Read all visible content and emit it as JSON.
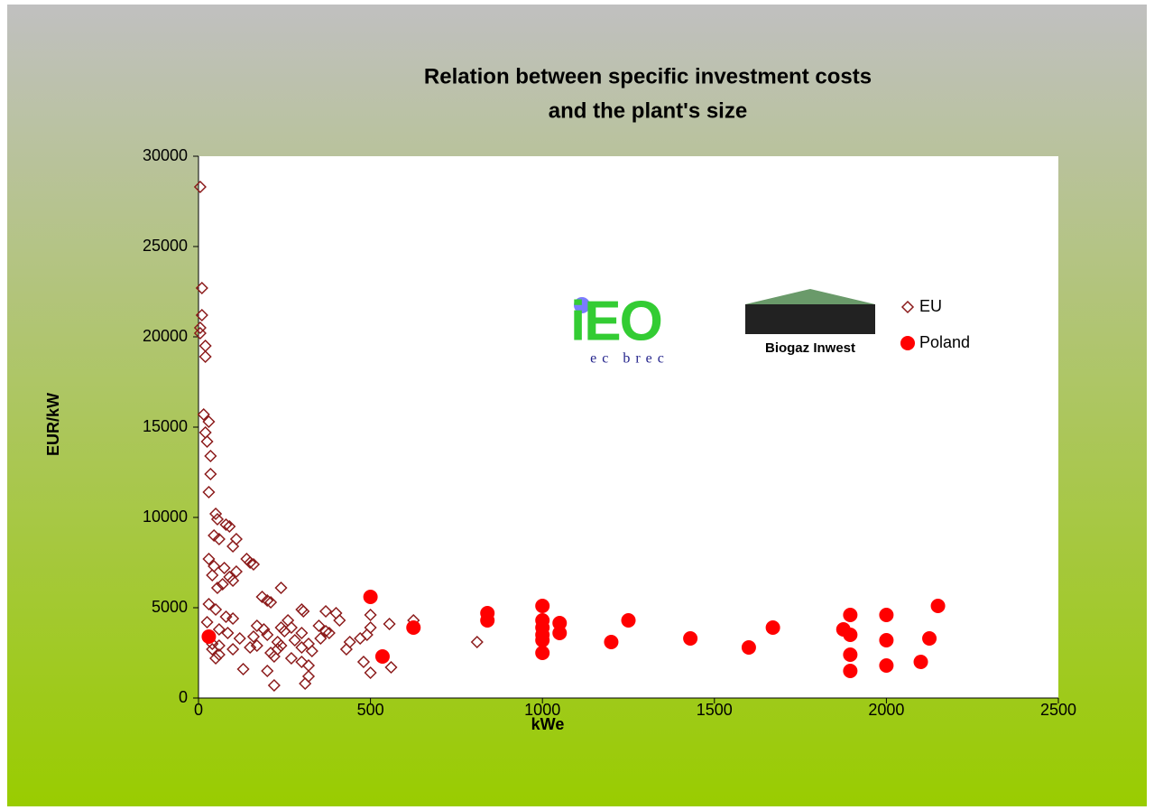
{
  "chart_data": {
    "type": "scatter",
    "title": [
      "Relation between  specific investment costs",
      "and the plant's size"
    ],
    "x_label": "kWe",
    "y_label": "EUR/kW",
    "xlim": [
      0,
      2500
    ],
    "xticks": [
      0,
      500,
      1000,
      1500,
      2000,
      2500
    ],
    "ylim": [
      0,
      30000
    ],
    "yticks": [
      0,
      5000,
      10000,
      15000,
      20000,
      25000,
      30000
    ],
    "grid": false,
    "legend": "right",
    "logos": [
      {
        "text": "iEO",
        "caption": "ec brec"
      },
      {
        "text": "Biogaz Inwest"
      }
    ],
    "series": [
      {
        "name": "EU",
        "color": "#8b1a1a",
        "marker": "diamond-open",
        "x": [
          5,
          10,
          10,
          5,
          5,
          20,
          20,
          15,
          30,
          20,
          25,
          35,
          35,
          30,
          50,
          55,
          80,
          90,
          45,
          60,
          110,
          100,
          30,
          45,
          75,
          140,
          150,
          160,
          110,
          40,
          90,
          100,
          70,
          55,
          240,
          185,
          200,
          210,
          30,
          50,
          300,
          305,
          370,
          400,
          500,
          80,
          100,
          260,
          410,
          625,
          555,
          25,
          170,
          190,
          240,
          250,
          270,
          350,
          370,
          380,
          300,
          500,
          60,
          85,
          120,
          160,
          200,
          230,
          280,
          320,
          470,
          490,
          440,
          810,
          40,
          60,
          100,
          150,
          170,
          210,
          230,
          300,
          330,
          220,
          270,
          300,
          320,
          480,
          560,
          130,
          200,
          320,
          500,
          310,
          220,
          50,
          40,
          60,
          430,
          240,
          355
        ],
        "values": [
          28300,
          22700,
          21200,
          20500,
          20200,
          19500,
          18900,
          15700,
          15300,
          14700,
          14200,
          13400,
          12400,
          11400,
          10200,
          9900,
          9600,
          9500,
          9000,
          8800,
          8800,
          8400,
          7700,
          7300,
          7200,
          7700,
          7500,
          7400,
          7000,
          6800,
          6700,
          6500,
          6300,
          6100,
          6100,
          5600,
          5400,
          5300,
          5200,
          4900,
          4900,
          4800,
          4800,
          4700,
          4600,
          4500,
          4400,
          4300,
          4300,
          4300,
          4100,
          4200,
          4000,
          3800,
          3900,
          3700,
          3900,
          4000,
          3700,
          3600,
          3600,
          3900,
          3800,
          3600,
          3300,
          3400,
          3500,
          3100,
          3200,
          3000,
          3300,
          3500,
          3100,
          3100,
          3000,
          2900,
          2700,
          2800,
          2900,
          2500,
          2700,
          2800,
          2600,
          2300,
          2200,
          2000,
          1800,
          2000,
          1700,
          1600,
          1500,
          1200,
          1400,
          800,
          700,
          2200,
          2700,
          2400,
          2700,
          2900,
          3300
        ]
      },
      {
        "name": "Poland",
        "color": "#ff0000",
        "marker": "circle",
        "x": [
          30,
          500,
          535,
          625,
          840,
          840,
          1000,
          1000,
          1000,
          1000,
          1000,
          1000,
          1050,
          1050,
          1200,
          1250,
          1430,
          1600,
          1670,
          1875,
          1895,
          1895,
          1895,
          1895,
          2000,
          2000,
          2000,
          2100,
          2125,
          2150
        ],
        "values": [
          3400,
          5600,
          2300,
          3900,
          4700,
          4300,
          5100,
          4300,
          3900,
          3500,
          3200,
          2500,
          4150,
          3600,
          3100,
          4300,
          3300,
          2800,
          3900,
          3800,
          4600,
          3500,
          2400,
          1500,
          4600,
          3200,
          1800,
          2000,
          3300,
          5100
        ]
      }
    ]
  }
}
